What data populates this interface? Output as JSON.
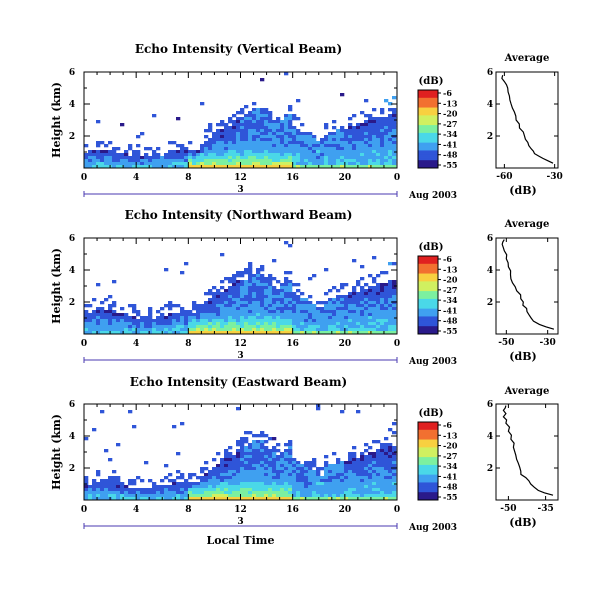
{
  "chart_data": [
    {
      "type": "heatmap",
      "title": "Echo Intensity (Vertical Beam)",
      "ylabel": "Height (km)",
      "x_ticks": [
        "0",
        "4",
        "8",
        "12",
        "16",
        "20",
        "0"
      ],
      "xlim": [
        0,
        24
      ],
      "y_ticks": [
        "6",
        "4",
        "2"
      ],
      "ylim": [
        0,
        6
      ],
      "date_label": "3",
      "date_right": "Aug 2003",
      "colorbar": {
        "unit": "(dB)",
        "ticks": [
          "-6",
          "-13",
          "-20",
          "-27",
          "-34",
          "-41",
          "-48",
          "-55"
        ]
      },
      "average_profile": {
        "title": "Average",
        "xlabel": "(dB)",
        "x_ticks": [
          "-60",
          "-30"
        ],
        "xlim": [
          -65,
          -28
        ],
        "ylim": [
          0,
          6
        ],
        "heights": [
          0.3,
          0.6,
          0.9,
          1.2,
          1.6,
          2.0,
          2.5,
          3.0,
          3.5,
          4.0,
          4.5,
          5.0,
          5.4,
          5.8
        ],
        "values": [
          -31,
          -37,
          -42,
          -44,
          -46,
          -48,
          -51,
          -53,
          -54,
          -56,
          -57,
          -58,
          -60,
          -61
        ]
      }
    },
    {
      "type": "heatmap",
      "title": "Echo Intensity (Northward Beam)",
      "ylabel": "Height (km)",
      "x_ticks": [
        "0",
        "4",
        "8",
        "12",
        "16",
        "20",
        "0"
      ],
      "xlim": [
        0,
        24
      ],
      "y_ticks": [
        "6",
        "4",
        "2"
      ],
      "ylim": [
        0,
        6
      ],
      "date_label": "3",
      "date_right": "Aug 2003",
      "colorbar": {
        "unit": "(dB)",
        "ticks": [
          "-6",
          "-13",
          "-20",
          "-27",
          "-34",
          "-41",
          "-48",
          "-55"
        ]
      },
      "average_profile": {
        "title": "Average",
        "xlabel": "(dB)",
        "x_ticks": [
          "-50",
          "-30"
        ],
        "xlim": [
          -55,
          -25
        ],
        "ylim": [
          0,
          6
        ],
        "heights": [
          0.3,
          0.6,
          1.0,
          1.4,
          1.8,
          2.2,
          2.7,
          3.2,
          3.7,
          4.2,
          4.7,
          5.2,
          5.6,
          5.9
        ],
        "values": [
          -27,
          -34,
          -38,
          -40,
          -42,
          -43,
          -45,
          -47,
          -48,
          -49,
          -50,
          -51,
          -52,
          -51
        ]
      }
    },
    {
      "type": "heatmap",
      "title": "Echo Intensity (Eastward Beam)",
      "ylabel": "Height (km)",
      "xlabel": "Local Time",
      "x_ticks": [
        "0",
        "4",
        "8",
        "12",
        "16",
        "20",
        "0"
      ],
      "xlim": [
        0,
        24
      ],
      "y_ticks": [
        "6",
        "4",
        "2"
      ],
      "ylim": [
        0,
        6
      ],
      "date_label": "3",
      "date_right": "Aug 2003",
      "colorbar": {
        "unit": "(dB)",
        "ticks": [
          "-6",
          "-13",
          "-20",
          "-27",
          "-34",
          "-41",
          "-48",
          "-55"
        ]
      },
      "average_profile": {
        "title": "Average",
        "xlabel": "(dB)",
        "x_ticks": [
          "-50",
          "-35"
        ],
        "xlim": [
          -55,
          -30
        ],
        "ylim": [
          0,
          6
        ],
        "heights": [
          0.3,
          0.6,
          1.0,
          1.4,
          1.8,
          2.3,
          2.8,
          3.3,
          3.8,
          4.3,
          4.8,
          5.2,
          5.6,
          5.9
        ],
        "values": [
          -32,
          -38,
          -41,
          -43,
          -45,
          -46,
          -47,
          -48,
          -49,
          -50,
          -51,
          -52,
          -52,
          -51
        ]
      }
    }
  ],
  "colors": {
    "colormap": [
      "#2a1a8a",
      "#2f55d8",
      "#3fa0f0",
      "#4ad8e8",
      "#7cf0a0",
      "#d0f060",
      "#f8d040",
      "#f27030",
      "#e02020"
    ],
    "frame": "#000000",
    "date_line": "#4a3ab0"
  }
}
